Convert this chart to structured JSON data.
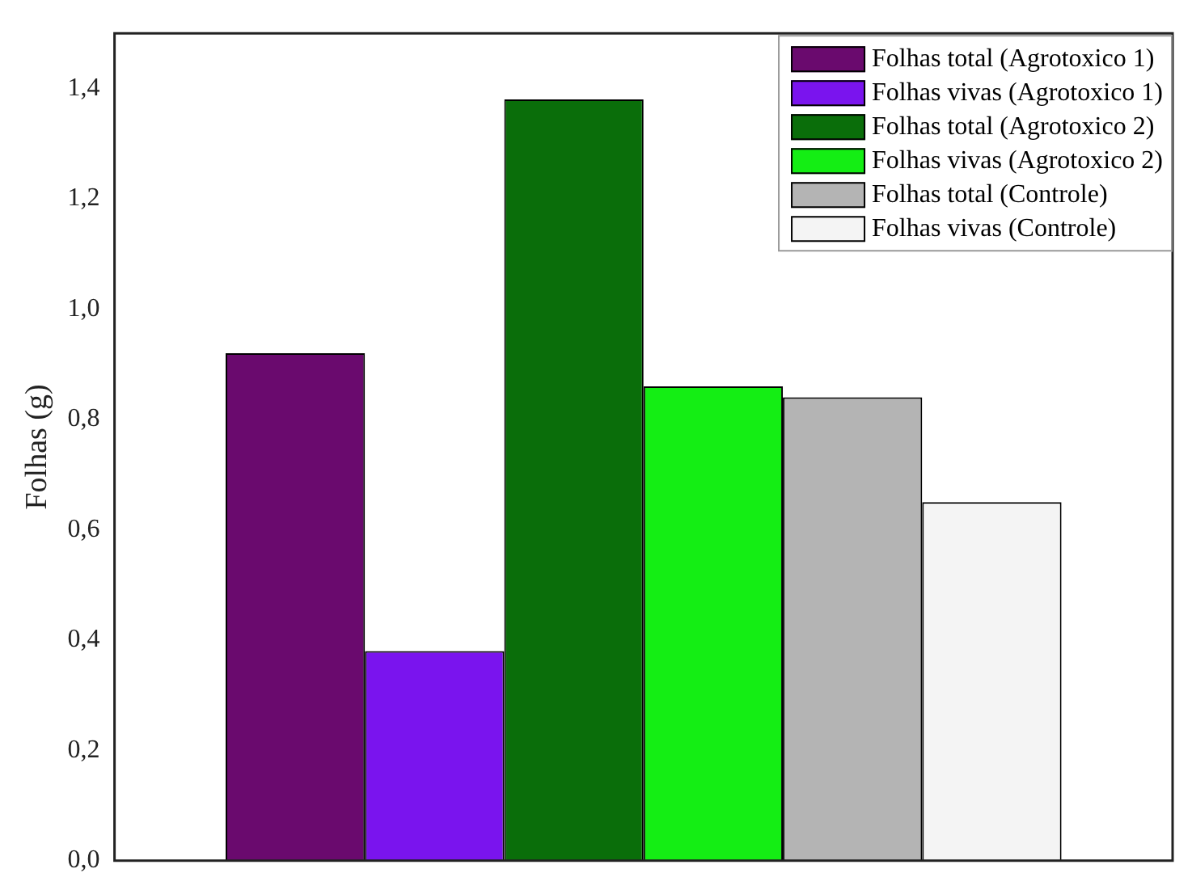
{
  "chart_data": {
    "type": "bar",
    "ylabel": "Folhas (g)",
    "categories": [
      null
    ],
    "series": [
      {
        "name": "Folhas total (Agrotoxico 1)",
        "color": "#6a0a6e",
        "values": [
          0.92
        ]
      },
      {
        "name": "Folhas vivas (Agrotoxico 1)",
        "color": "#7a14ee",
        "values": [
          0.38
        ]
      },
      {
        "name": "Folhas total (Agrotoxico 2)",
        "color": "#0a6e0a",
        "values": [
          1.38
        ]
      },
      {
        "name": "Folhas vivas (Agrotoxico 2)",
        "color": "#14ee14",
        "values": [
          0.86
        ]
      },
      {
        "name": "Folhas total (Controle)",
        "color": "#b4b4b4",
        "values": [
          0.84
        ]
      },
      {
        "name": "Folhas vivas (Controle)",
        "color": "#f4f4f4",
        "values": [
          0.65
        ]
      }
    ],
    "ylim": [
      0,
      1.5
    ],
    "yticks": [
      {
        "value": 0,
        "label": "0,0"
      },
      {
        "value": 0.2,
        "label": "0,2"
      },
      {
        "value": 0.4,
        "label": "0,4"
      },
      {
        "value": 0.6,
        "label": "0,6"
      },
      {
        "value": 0.8,
        "label": "0,8"
      },
      {
        "value": 1,
        "label": "1,0"
      },
      {
        "value": 1.2,
        "label": "1,2"
      },
      {
        "value": 1.4,
        "label": "1,4"
      }
    ],
    "legend": "top right",
    "tick_labels": "y"
  }
}
